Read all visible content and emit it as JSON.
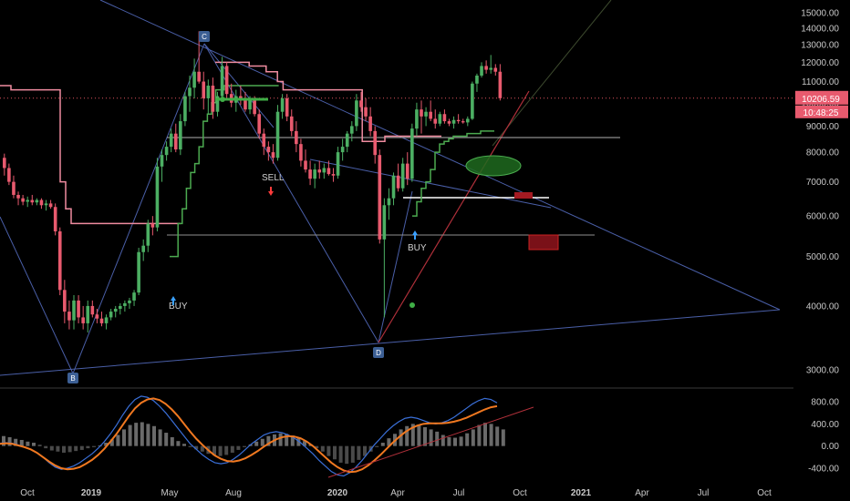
{
  "chart_data": [
    {
      "type": "candlestick",
      "title": "",
      "y_axis": {
        "scale": "log",
        "ticks": [
          "15000.00",
          "14000.00",
          "13000.00",
          "12000.00",
          "11000.00",
          "10000.00",
          "9000.00",
          "8000.00",
          "7000.00",
          "6000.00",
          "5000.00",
          "4000.00",
          "3000.00"
        ]
      },
      "x_axis": {
        "ticks": [
          "Oct",
          "2019",
          "May",
          "Aug",
          "2020",
          "Apr",
          "Jul",
          "Oct",
          "2021",
          "Apr",
          "Jul",
          "Oct"
        ]
      },
      "current_price": {
        "value": "10206.59",
        "countdown": "10:48:25"
      },
      "candles_ohlc": [
        [
          7800,
          7950,
          7200,
          7450
        ],
        [
          7450,
          7600,
          6900,
          7000
        ],
        [
          7000,
          7200,
          6500,
          6600
        ],
        [
          6600,
          6700,
          6300,
          6500
        ],
        [
          6500,
          6600,
          6300,
          6400
        ],
        [
          6400,
          6550,
          6250,
          6450
        ],
        [
          6450,
          6600,
          6300,
          6380
        ],
        [
          6380,
          6500,
          6300,
          6450
        ],
        [
          6450,
          6500,
          6200,
          6300
        ],
        [
          6300,
          6450,
          6150,
          6350
        ],
        [
          6350,
          6450,
          6200,
          6250
        ],
        [
          6250,
          6350,
          5500,
          5600
        ],
        [
          5600,
          5700,
          4200,
          4300
        ],
        [
          4300,
          4500,
          3700,
          3900
        ],
        [
          3900,
          4100,
          3600,
          3750
        ],
        [
          3750,
          4200,
          3600,
          4100
        ],
        [
          4100,
          4200,
          3700,
          3800
        ],
        [
          3800,
          4000,
          3600,
          3700
        ],
        [
          3700,
          4100,
          3550,
          4000
        ],
        [
          4000,
          4100,
          3800,
          3850
        ],
        [
          3850,
          3950,
          3700,
          3780
        ],
        [
          3780,
          3900,
          3650,
          3700
        ],
        [
          3700,
          3850,
          3600,
          3800
        ],
        [
          3800,
          3950,
          3750,
          3900
        ],
        [
          3900,
          4000,
          3800,
          3950
        ],
        [
          3950,
          4050,
          3850,
          4000
        ],
        [
          4000,
          4100,
          3900,
          4050
        ],
        [
          4050,
          4150,
          3950,
          4100
        ],
        [
          4100,
          4300,
          4000,
          4250
        ],
        [
          4250,
          5200,
          4200,
          5100
        ],
        [
          5100,
          5400,
          4900,
          5250
        ],
        [
          5250,
          5900,
          5100,
          5800
        ],
        [
          5800,
          6000,
          5500,
          5700
        ],
        [
          5700,
          7800,
          5600,
          7500
        ],
        [
          7500,
          8100,
          7000,
          7900
        ],
        [
          7900,
          8400,
          7700,
          8200
        ],
        [
          8200,
          8900,
          8000,
          8700
        ],
        [
          8700,
          9100,
          8000,
          8100
        ],
        [
          8100,
          9500,
          7900,
          9200
        ],
        [
          9200,
          10500,
          9000,
          10300
        ],
        [
          10300,
          11300,
          9600,
          10700
        ],
        [
          10700,
          12200,
          10200,
          11500
        ],
        [
          11500,
          13800,
          10900,
          11000
        ],
        [
          11000,
          11500,
          9700,
          10200
        ],
        [
          10200,
          11100,
          9500,
          10800
        ],
        [
          10800,
          11200,
          9300,
          9600
        ],
        [
          9600,
          10500,
          9400,
          10300
        ],
        [
          10300,
          12300,
          10100,
          11800
        ],
        [
          11800,
          12000,
          10200,
          10400
        ],
        [
          10400,
          10900,
          9800,
          10000
        ],
        [
          10000,
          10600,
          9600,
          10300
        ],
        [
          10300,
          10800,
          9900,
          10100
        ],
        [
          10100,
          10500,
          9600,
          9700
        ],
        [
          9700,
          10300,
          9500,
          10100
        ],
        [
          10100,
          10300,
          9400,
          9500
        ],
        [
          9500,
          9700,
          8500,
          8700
        ],
        [
          8700,
          8900,
          7900,
          8200
        ],
        [
          8200,
          8400,
          7700,
          8000
        ],
        [
          8000,
          8300,
          7600,
          7800
        ],
        [
          7800,
          9900,
          7700,
          9600
        ],
        [
          9600,
          10400,
          9300,
          10200
        ],
        [
          10200,
          10400,
          9200,
          9400
        ],
        [
          9400,
          9700,
          8600,
          8800
        ],
        [
          8800,
          9200,
          8000,
          8300
        ],
        [
          8300,
          8500,
          7500,
          7700
        ],
        [
          7700,
          8100,
          7300,
          7400
        ],
        [
          7400,
          7700,
          6900,
          7100
        ],
        [
          7100,
          7600,
          6800,
          7400
        ],
        [
          7400,
          7700,
          7100,
          7300
        ],
        [
          7300,
          7600,
          7100,
          7450
        ],
        [
          7450,
          7700,
          7200,
          7250
        ],
        [
          7250,
          7450,
          7000,
          7200
        ],
        [
          7200,
          8200,
          7100,
          8000
        ],
        [
          8000,
          8500,
          7700,
          8200
        ],
        [
          8200,
          8800,
          8000,
          8700
        ],
        [
          8700,
          9200,
          8400,
          9000
        ],
        [
          9000,
          10400,
          8800,
          10100
        ],
        [
          10100,
          10500,
          9600,
          9800
        ],
        [
          9800,
          10200,
          9200,
          9400
        ],
        [
          9400,
          9800,
          8600,
          8800
        ],
        [
          8800,
          9000,
          7600,
          7900
        ],
        [
          7900,
          8100,
          5300,
          5400
        ],
        [
          5400,
          6500,
          3800,
          6300
        ],
        [
          6300,
          6800,
          5900,
          6500
        ],
        [
          6500,
          7300,
          6300,
          7200
        ],
        [
          7200,
          7600,
          6700,
          6800
        ],
        [
          6800,
          7800,
          6700,
          7600
        ],
        [
          7600,
          8000,
          6900,
          7100
        ],
        [
          7100,
          9100,
          7000,
          8900
        ],
        [
          8900,
          10000,
          8600,
          9700
        ],
        [
          9700,
          10100,
          8700,
          9400
        ],
        [
          9400,
          9800,
          9000,
          9600
        ],
        [
          9600,
          10100,
          9200,
          9300
        ],
        [
          9300,
          9700,
          8900,
          9100
        ],
        [
          9100,
          9600,
          9000,
          9500
        ],
        [
          9500,
          9700,
          9100,
          9200
        ],
        [
          9200,
          9300,
          9000,
          9100
        ],
        [
          9100,
          9400,
          8900,
          9250
        ],
        [
          9250,
          9500,
          9100,
          9200
        ],
        [
          9200,
          9300,
          9100,
          9150
        ],
        [
          9150,
          9400,
          9000,
          9300
        ],
        [
          9300,
          11000,
          9250,
          10900
        ],
        [
          10900,
          11400,
          10500,
          11300
        ],
        [
          11300,
          12000,
          11200,
          11800
        ],
        [
          11800,
          12100,
          11400,
          11600
        ],
        [
          11600,
          12400,
          11400,
          11700
        ],
        [
          11700,
          11900,
          11300,
          11500
        ],
        [
          11500,
          11900,
          10100,
          10206
        ]
      ],
      "stepped_line": [
        [
          10800,
          10800,
          10600,
          10600,
          10600,
          10600,
          10600,
          10600,
          10600,
          10600,
          10600,
          7000,
          6200,
          5800,
          5800,
          5800,
          5800,
          5800,
          5800,
          5800,
          5800,
          5800,
          5800,
          5800,
          5800,
          5800,
          5800,
          5800,
          5800,
          5800,
          5800,
          5800,
          5800
        ],
        [
          12000,
          12000,
          12000,
          12000,
          12000,
          12000,
          11800,
          11800,
          11800,
          11500,
          11500,
          11000,
          10600,
          10600,
          10600,
          10600,
          10600,
          10600,
          10600,
          10600,
          10600,
          10600,
          10600,
          10600,
          10600,
          10600,
          8400,
          8400,
          8400,
          8400,
          8600,
          8600,
          8600,
          8600,
          8600,
          8600,
          8600,
          8600,
          8600,
          8600
        ]
      ],
      "support_line": [
        [
          5000,
          5000,
          5800,
          6200,
          6800,
          7300,
          7600,
          8200,
          9200,
          9500,
          10000,
          10600,
          10600,
          10800,
          10800,
          10800,
          10800,
          10800,
          10800,
          10800,
          10800,
          10800,
          10800,
          10800,
          10800,
          10800
        ],
        [
          6000,
          6400,
          6800,
          7000,
          7400,
          8000,
          8300,
          8400,
          8500,
          8600,
          8600,
          8600,
          8700,
          8700,
          8700,
          8800,
          8800,
          8800
        ]
      ],
      "annotations": {
        "buy1": "BUY",
        "buy2": "BUY",
        "sell": "SELL",
        "point_b": "B",
        "point_c": "C",
        "point_d": "D"
      }
    },
    {
      "type": "line",
      "title": "",
      "y_axis": {
        "ticks": [
          "800.00",
          "400.00",
          "0.00",
          "-400.00"
        ]
      },
      "oscillator_note": "MACD-style oscillator with histogram, two signal lines and an upward trend line",
      "histogram": [
        180,
        160,
        130,
        110,
        80,
        60,
        20,
        -40,
        -80,
        -100,
        -120,
        -110,
        -90,
        -70,
        -40,
        -20,
        10,
        60,
        120,
        200,
        300,
        380,
        420,
        430,
        400,
        360,
        300,
        240,
        160,
        90,
        40,
        -20,
        -60,
        -100,
        -140,
        -170,
        -180,
        -160,
        -120,
        -70,
        -20,
        30,
        80,
        130,
        180,
        210,
        230,
        220,
        190,
        150,
        90,
        30,
        -40,
        -100,
        -180,
        -240,
        -300,
        -320,
        -300,
        -250,
        -180,
        -100,
        -20,
        60,
        140,
        220,
        300,
        360,
        400,
        380,
        340,
        300,
        260,
        200,
        160,
        150,
        170,
        230,
        300,
        380,
        420,
        400,
        350,
        300
      ],
      "macd_line": [
        50,
        60,
        50,
        20,
        -20,
        -60,
        -120,
        -200,
        -300,
        -380,
        -420,
        -400,
        -360,
        -300,
        -220,
        -140,
        -40,
        80,
        220,
        380,
        560,
        720,
        840,
        900,
        880,
        820,
        720,
        600,
        460,
        320,
        180,
        40,
        -60,
        -160,
        -240,
        -300,
        -320,
        -300,
        -240,
        -160,
        -60,
        40,
        120,
        200,
        240,
        260,
        240,
        200,
        140,
        60,
        -40,
        -140,
        -260,
        -360,
        -460,
        -520,
        -540,
        -480,
        -380,
        -260,
        -120,
        20,
        140,
        260,
        360,
        440,
        500,
        520,
        500,
        460,
        420,
        400,
        420,
        460,
        520,
        600,
        680,
        760,
        820,
        860,
        840,
        780
      ],
      "signal_line": [
        40,
        50,
        40,
        10,
        -20,
        -60,
        -120,
        -200,
        -280,
        -350,
        -400,
        -420,
        -410,
        -380,
        -320,
        -250,
        -160,
        -50,
        80,
        220,
        380,
        540,
        680,
        780,
        840,
        860,
        830,
        760,
        660,
        540,
        400,
        260,
        130,
        20,
        -80,
        -170,
        -230,
        -270,
        -280,
        -260,
        -220,
        -160,
        -90,
        -10,
        60,
        120,
        160,
        180,
        170,
        140,
        80,
        0,
        -100,
        -200,
        -300,
        -380,
        -440,
        -470,
        -460,
        -420,
        -350,
        -260,
        -160,
        -50,
        60,
        160,
        250,
        320,
        370,
        400,
        410,
        410,
        410,
        420,
        440,
        470,
        510,
        560,
        610,
        660,
        700,
        720
      ]
    }
  ]
}
